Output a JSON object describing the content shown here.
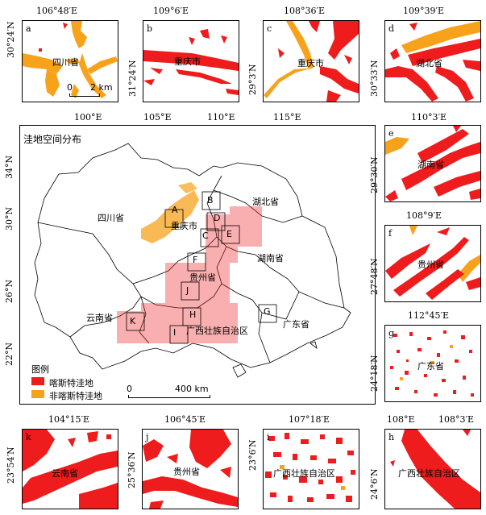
{
  "colors": {
    "karst": "#ee1c1c",
    "nonkarst": "#f7a21b"
  },
  "panels": {
    "a": {
      "letter": "a",
      "lon": "106°48′E",
      "lat": "30°24′N",
      "place": "四川省",
      "scale_0": "0",
      "scale_2": "2 km"
    },
    "b": {
      "letter": "b",
      "lon": "109°6′E",
      "lat": "31°24′N",
      "place": "重庆市"
    },
    "c": {
      "letter": "c",
      "lon": "108°36′E",
      "lat": "29°3′N",
      "place": "重庆市"
    },
    "d": {
      "letter": "d",
      "lon": "109°39′E",
      "lat": "30°33′N",
      "place": "湖北省"
    },
    "e": {
      "letter": "e",
      "lon": "110°3′E",
      "lat": "29°30′N",
      "place": "湖南省"
    },
    "f": {
      "letter": "f",
      "lon": "108°9′E",
      "lat": "27°48′N",
      "place": "贵州省"
    },
    "g": {
      "letter": "g",
      "lon": "112°45′E",
      "lat": "24°18′N",
      "place": "广东省"
    },
    "h": {
      "letter": "h",
      "lon1": "108°E",
      "lon2": "108°3′E",
      "lat": "24°6′N",
      "place": "广西壮族自治区"
    },
    "i": {
      "letter": "i",
      "lon": "107°18′E",
      "lat": "23°6′N",
      "place": "广西壮族自治区"
    },
    "j": {
      "letter": "j",
      "lon": "106°45′E",
      "lat": "25°36′N",
      "place": "贵州省"
    },
    "k": {
      "letter": "k",
      "lon": "104°15′E",
      "lat": "23°54′N",
      "place": "云南省"
    }
  },
  "main": {
    "title": "洼地空间分布",
    "lon_ticks": [
      "100°E",
      "105°E",
      "110°E",
      "115°E"
    ],
    "lat_ticks": [
      "34°N",
      "30°N",
      "26°N",
      "22°N"
    ],
    "provinces": {
      "sichuan": "四川省",
      "chongqing": "重庆市",
      "hubei": "湖北省",
      "hunan": "湖南省",
      "guizhou": "贵州省",
      "yunnan": "云南省",
      "guangxi": "广西壮族自治区",
      "guangdong": "广东省"
    },
    "region_letters": [
      "A",
      "B",
      "C",
      "D",
      "E",
      "F",
      "G",
      "H",
      "I",
      "J",
      "K"
    ],
    "legend": {
      "title": "图例",
      "karst": "喀斯特洼地",
      "nonkarst": "非喀斯特洼地"
    },
    "scale": {
      "zero": "0",
      "distance": "400 km"
    }
  }
}
